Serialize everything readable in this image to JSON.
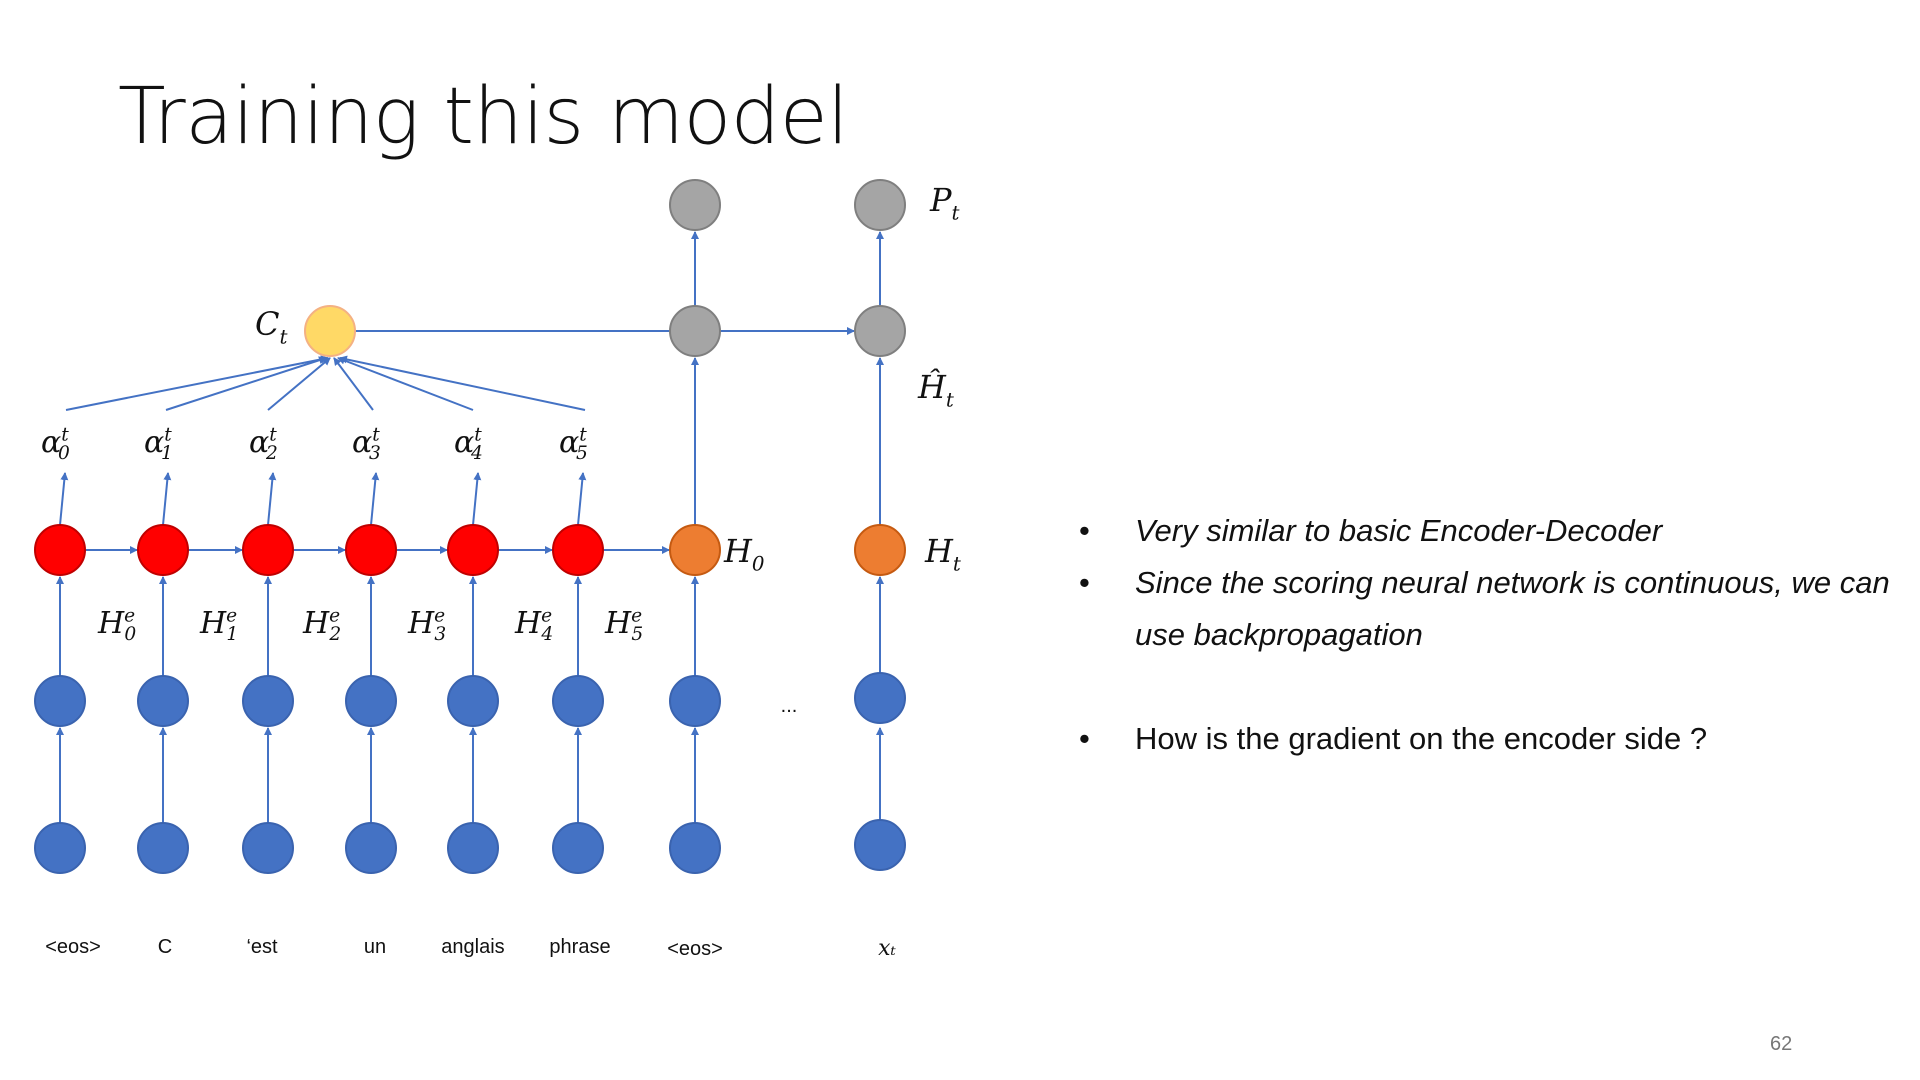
{
  "slide": {
    "title": "Training this model",
    "page_number": "62"
  },
  "diagram": {
    "encoder_words": [
      "<eos>",
      "C",
      "‘est",
      "un",
      "anglais",
      "phrase"
    ],
    "decoder_words": [
      "<eos>",
      "xₜ"
    ],
    "ellipsis": "...",
    "alpha_labels": [
      {
        "base": "α",
        "sup": "t",
        "sub": "0"
      },
      {
        "base": "α",
        "sup": "t",
        "sub": "1"
      },
      {
        "base": "α",
        "sup": "t",
        "sub": "2"
      },
      {
        "base": "α",
        "sup": "t",
        "sub": "3"
      },
      {
        "base": "α",
        "sup": "t",
        "sub": "4"
      },
      {
        "base": "α",
        "sup": "t",
        "sub": "5"
      }
    ],
    "encoder_state_labels": [
      {
        "base": "H",
        "sup": "e",
        "sub": "0"
      },
      {
        "base": "H",
        "sup": "e",
        "sub": "1"
      },
      {
        "base": "H",
        "sup": "e",
        "sub": "2"
      },
      {
        "base": "H",
        "sup": "e",
        "sub": "3"
      },
      {
        "base": "H",
        "sup": "e",
        "sub": "4"
      },
      {
        "base": "H",
        "sup": "e",
        "sub": "5"
      }
    ],
    "context_label": {
      "base": "C",
      "sub": "t"
    },
    "h0_label": {
      "base": "H",
      "sub": "0"
    },
    "ht_label": {
      "base": "H",
      "sub": "t"
    },
    "hhat_label": {
      "base": "Ĥ",
      "sub": "t"
    },
    "pt_label": {
      "base": "P",
      "sub": "t"
    },
    "colors": {
      "edge": "#4472C4",
      "input_node": "#4472C4",
      "encoder_state": "#FF0000",
      "decoder_state": "#ED7D31",
      "context": "#FFD966",
      "output_node": "#A5A5A5"
    }
  },
  "bullets": [
    {
      "text": "Very similar to basic Encoder-Decoder",
      "italic": true
    },
    {
      "text": "Since the scoring neural network is continuous, we can use backpropagation",
      "italic": true
    },
    {
      "text": "How is the gradient on the encoder side ?",
      "italic": false
    }
  ]
}
